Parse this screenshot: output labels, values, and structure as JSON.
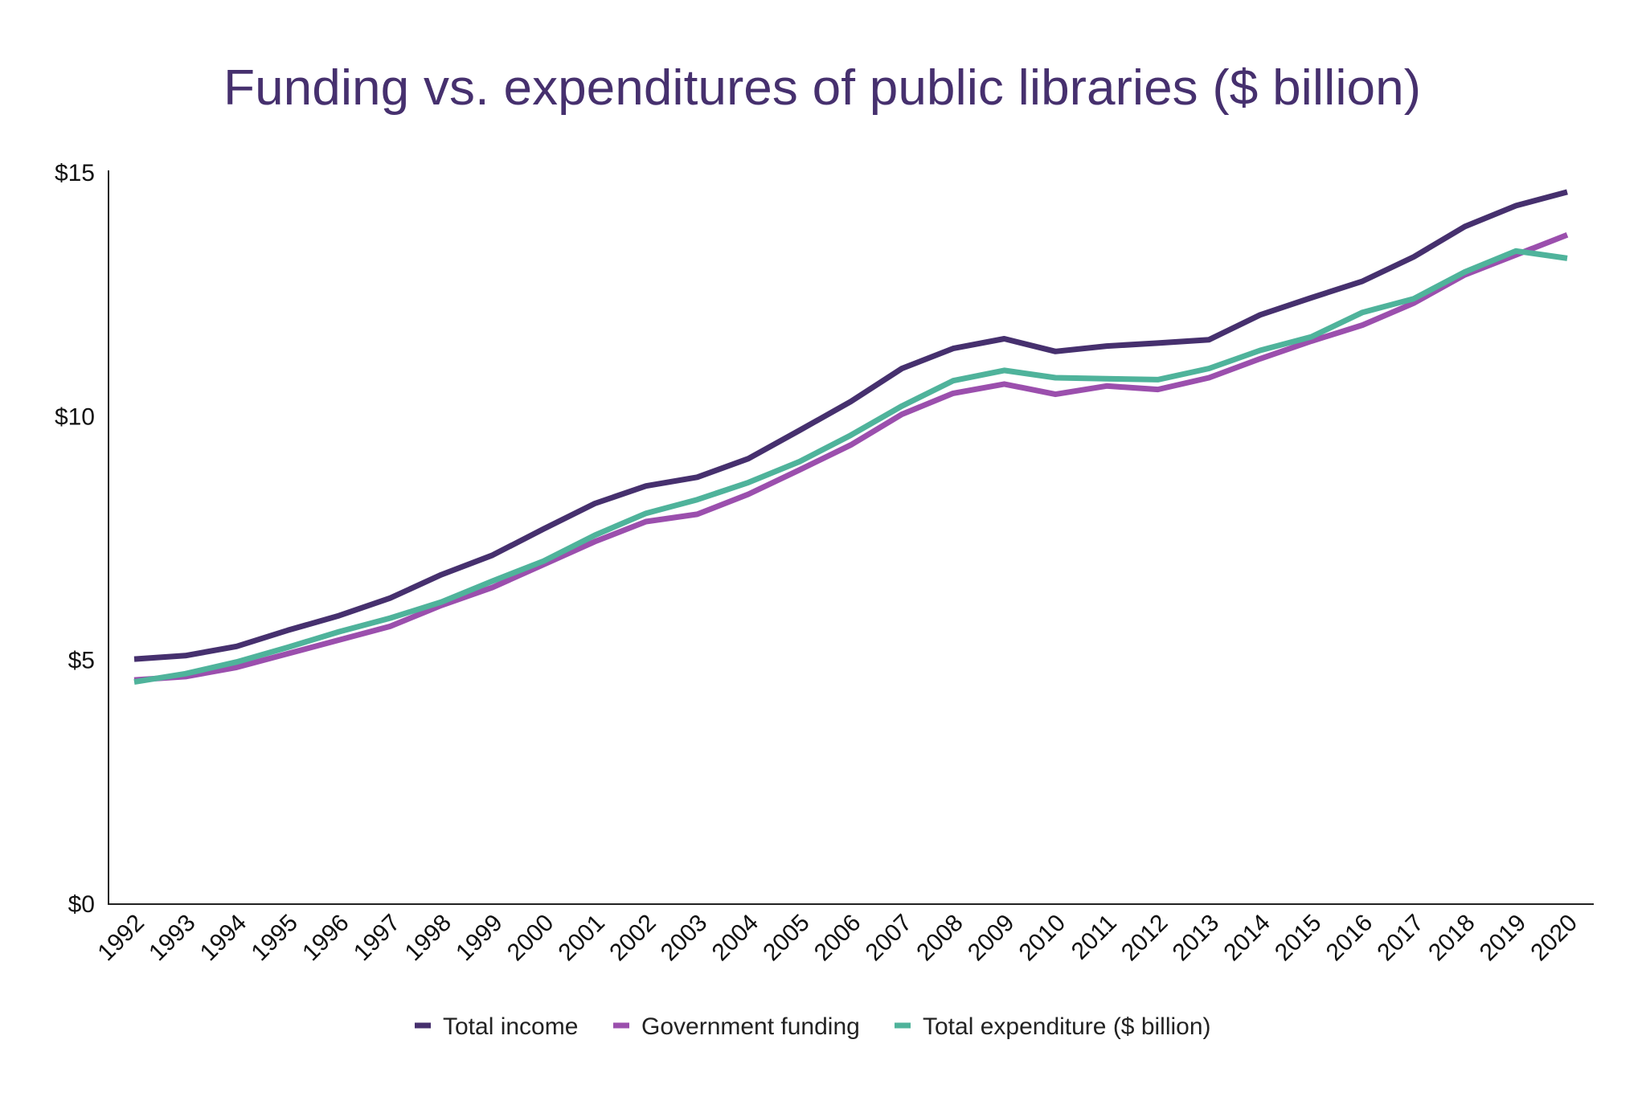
{
  "chart_data": {
    "type": "line",
    "title": "Funding vs. expenditures of public libraries ($ billion)",
    "xlabel": "",
    "ylabel": "",
    "ylim": [
      0,
      15
    ],
    "y_ticks": [
      0,
      5,
      10,
      15
    ],
    "y_tick_labels": [
      "$0",
      "$5",
      "$10",
      "$15"
    ],
    "grid": false,
    "legend_position": "bottom",
    "title_color": "#46306e",
    "x": [
      "1992",
      "1993",
      "1994",
      "1995",
      "1996",
      "1997",
      "1998",
      "1999",
      "2000",
      "2001",
      "2002",
      "2003",
      "2004",
      "2005",
      "2006",
      "2007",
      "2008",
      "2009",
      "2010",
      "2011",
      "2012",
      "2013",
      "2014",
      "2015",
      "2016",
      "2017",
      "2018",
      "2019",
      "2020"
    ],
    "series": [
      {
        "name": "Total income",
        "color": "#46306e",
        "values": [
          5.01,
          5.08,
          5.27,
          5.6,
          5.9,
          6.26,
          6.74,
          7.14,
          7.68,
          8.2,
          8.56,
          8.74,
          9.12,
          9.7,
          10.29,
          10.97,
          11.38,
          11.58,
          11.32,
          11.43,
          11.49,
          11.56,
          12.07,
          12.42,
          12.76,
          13.26,
          13.88,
          14.31,
          14.59
        ]
      },
      {
        "name": "Government funding",
        "color": "#9b4fad",
        "values": [
          4.58,
          4.65,
          4.84,
          5.12,
          5.4,
          5.68,
          6.11,
          6.48,
          6.95,
          7.42,
          7.83,
          7.98,
          8.39,
          8.89,
          9.4,
          10.03,
          10.46,
          10.65,
          10.44,
          10.61,
          10.54,
          10.78,
          11.17,
          11.53,
          11.86,
          12.31,
          12.89,
          13.3,
          13.71
        ]
      },
      {
        "name": "Total expenditure ($ billion)",
        "color": "#4fb39b",
        "values": [
          4.54,
          4.71,
          4.95,
          5.25,
          5.57,
          5.85,
          6.18,
          6.61,
          7.02,
          7.55,
          8.0,
          8.28,
          8.63,
          9.06,
          9.6,
          10.2,
          10.72,
          10.93,
          10.78,
          10.76,
          10.74,
          10.97,
          11.34,
          11.62,
          12.12,
          12.4,
          12.95,
          13.38,
          13.23
        ]
      }
    ]
  }
}
